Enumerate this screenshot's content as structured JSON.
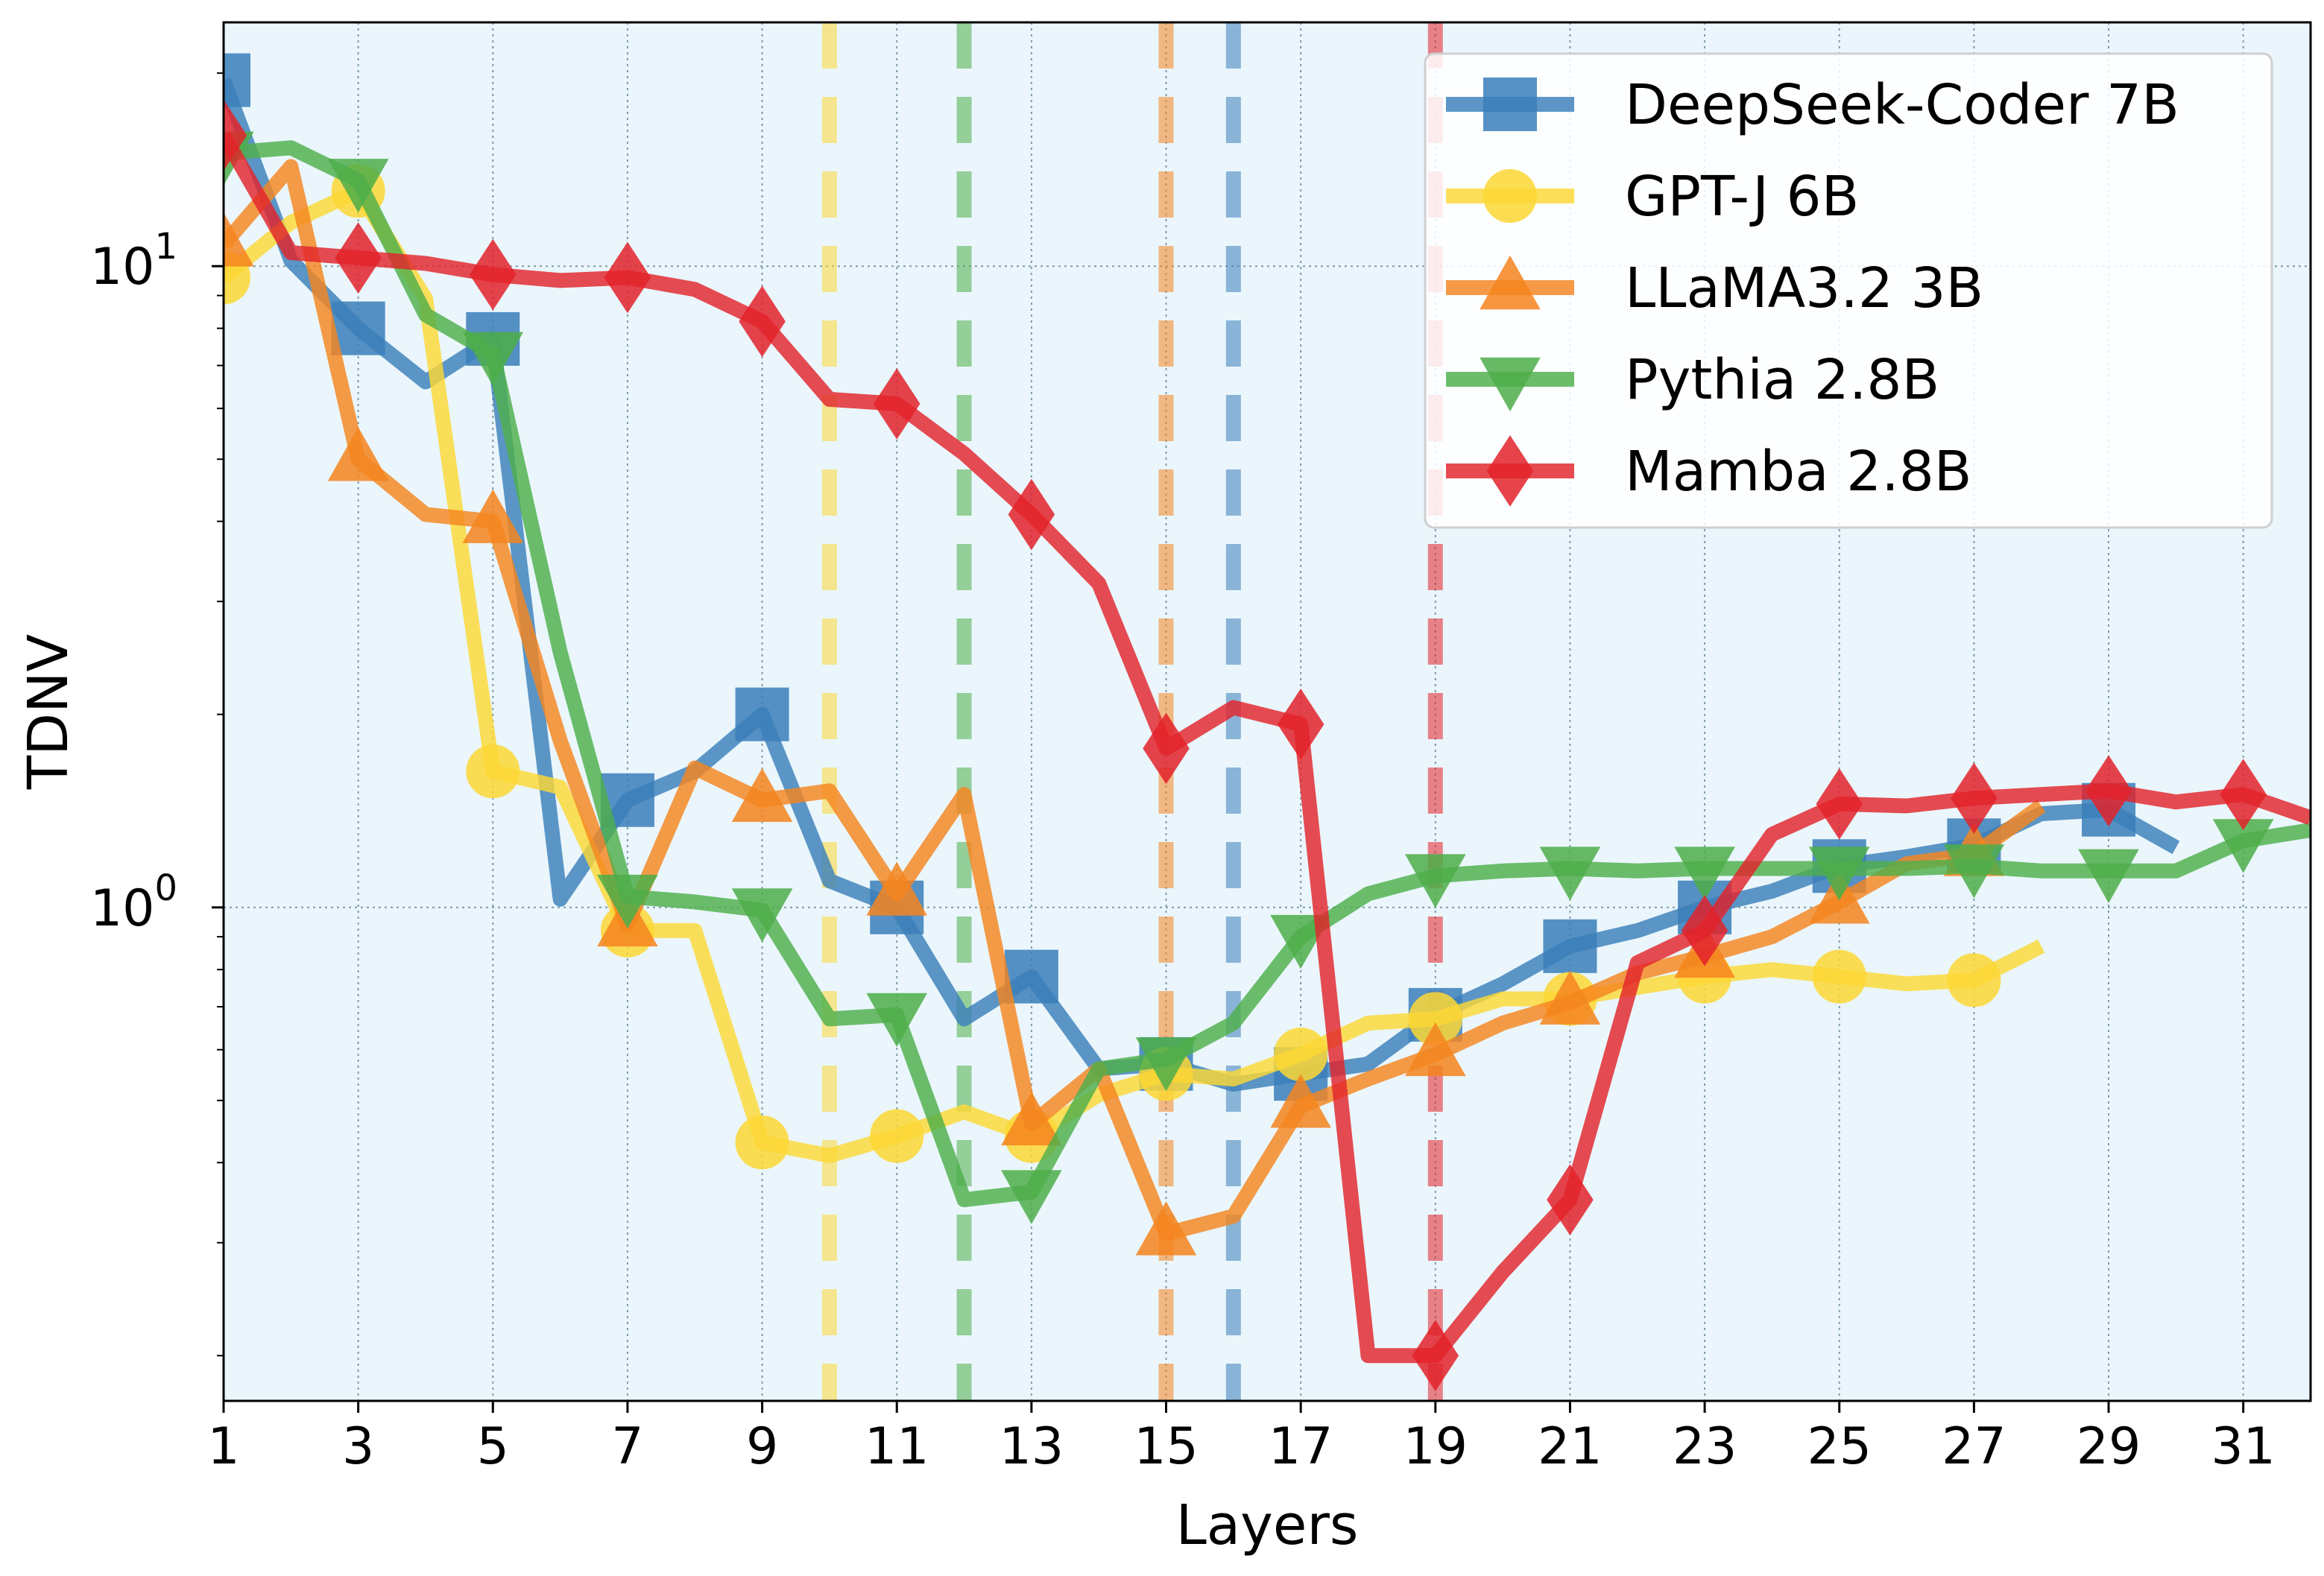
{
  "chart_data": {
    "type": "line",
    "xlabel": "Layers",
    "ylabel": "TDNV",
    "xlim": [
      1,
      32
    ],
    "ylim": [
      0.17,
      24
    ],
    "yscale": "log",
    "x_ticks": [
      "1",
      "3",
      "5",
      "7",
      "9",
      "11",
      "13",
      "15",
      "17",
      "19",
      "21",
      "23",
      "25",
      "27",
      "29",
      "31"
    ],
    "y_ticks": [
      {
        "value": 1,
        "base": "10",
        "exp": "0"
      },
      {
        "value": 10,
        "base": "10",
        "exp": "1"
      }
    ],
    "grid": true,
    "background_color": "#eaf6fc",
    "legend_position": "top-right",
    "series": [
      {
        "name": "DeepSeek-Coder 7B",
        "color": "#3b7fba",
        "marker": "square",
        "x": [
          1,
          2,
          3,
          4,
          5,
          6,
          7,
          8,
          9,
          10,
          11,
          12,
          13,
          14,
          15,
          16,
          17,
          18,
          19,
          20,
          21,
          22,
          23,
          24,
          25,
          26,
          27,
          28,
          29,
          30
        ],
        "y": [
          19.5,
          10.2,
          8.0,
          6.6,
          7.7,
          1.03,
          1.47,
          1.63,
          2.0,
          1.1,
          1.0,
          0.67,
          0.78,
          0.56,
          0.57,
          0.53,
          0.55,
          0.57,
          0.68,
          0.76,
          0.87,
          0.92,
          1.0,
          1.06,
          1.16,
          1.2,
          1.25,
          1.4,
          1.42,
          1.24
        ]
      },
      {
        "name": "GPT-J 6B",
        "color": "#fdd835",
        "marker": "circle",
        "x": [
          1,
          2,
          3,
          4,
          5,
          6,
          7,
          8,
          9,
          10,
          11,
          12,
          13,
          14,
          15,
          16,
          17,
          18,
          19,
          20,
          21,
          22,
          23,
          24,
          25,
          26,
          27,
          28
        ],
        "y": [
          9.6,
          11.7,
          13.1,
          8.9,
          1.63,
          1.54,
          0.92,
          0.92,
          0.43,
          0.41,
          0.44,
          0.48,
          0.44,
          0.51,
          0.55,
          0.54,
          0.59,
          0.66,
          0.67,
          0.72,
          0.72,
          0.75,
          0.78,
          0.8,
          0.78,
          0.76,
          0.77,
          0.87
        ]
      },
      {
        "name": "LLaMA3.2 3B",
        "color": "#f5851f",
        "marker": "triangle-up",
        "x": [
          1,
          2,
          3,
          4,
          5,
          6,
          7,
          8,
          9,
          10,
          11,
          12,
          13,
          14,
          15,
          16,
          17,
          18,
          19,
          20,
          21,
          22,
          23,
          24,
          25,
          26,
          27,
          28
        ],
        "y": [
          10.8,
          14.3,
          5.0,
          4.1,
          4.0,
          1.82,
          0.94,
          1.65,
          1.47,
          1.52,
          1.05,
          1.5,
          0.46,
          0.56,
          0.31,
          0.33,
          0.49,
          0.54,
          0.59,
          0.66,
          0.71,
          0.79,
          0.84,
          0.9,
          1.02,
          1.17,
          1.21,
          1.44
        ]
      },
      {
        "name": "Pythia 2.8B",
        "color": "#4eae4a",
        "marker": "triangle-down",
        "x": [
          1,
          2,
          3,
          4,
          5,
          6,
          7,
          8,
          9,
          10,
          11,
          12,
          13,
          14,
          15,
          16,
          17,
          18,
          19,
          20,
          21,
          22,
          23,
          24,
          25,
          26,
          27,
          28,
          29,
          30,
          31,
          32
        ],
        "y": [
          15.0,
          15.3,
          13.6,
          8.4,
          7.3,
          2.5,
          1.04,
          1.02,
          0.99,
          0.67,
          0.68,
          0.35,
          0.36,
          0.56,
          0.58,
          0.66,
          0.9,
          1.05,
          1.12,
          1.14,
          1.15,
          1.14,
          1.15,
          1.15,
          1.15,
          1.15,
          1.16,
          1.14,
          1.14,
          1.14,
          1.27,
          1.32
        ]
      },
      {
        "name": "Mamba 2.8B",
        "color": "#e3232b",
        "marker": "diamond",
        "x": [
          1,
          2,
          3,
          4,
          5,
          6,
          7,
          8,
          9,
          10,
          11,
          12,
          13,
          14,
          15,
          16,
          17,
          18,
          19,
          20,
          21,
          22,
          23,
          24,
          25,
          26,
          27,
          28,
          29,
          30,
          31,
          32
        ],
        "y": [
          16.0,
          10.5,
          10.3,
          10.1,
          9.7,
          9.5,
          9.6,
          9.2,
          8.2,
          6.2,
          6.1,
          5.1,
          4.1,
          3.2,
          1.77,
          2.05,
          1.93,
          0.2,
          0.2,
          0.27,
          0.35,
          0.82,
          0.92,
          1.3,
          1.45,
          1.44,
          1.48,
          1.5,
          1.52,
          1.46,
          1.5,
          1.38
        ]
      }
    ],
    "vertical_lines": [
      {
        "x": 10,
        "color": "#fdd835"
      },
      {
        "x": 12,
        "color": "#4eae4a"
      },
      {
        "x": 15,
        "color": "#f5851f"
      },
      {
        "x": 16,
        "color": "#3b7fba"
      },
      {
        "x": 19,
        "color": "#e3232b"
      }
    ]
  }
}
